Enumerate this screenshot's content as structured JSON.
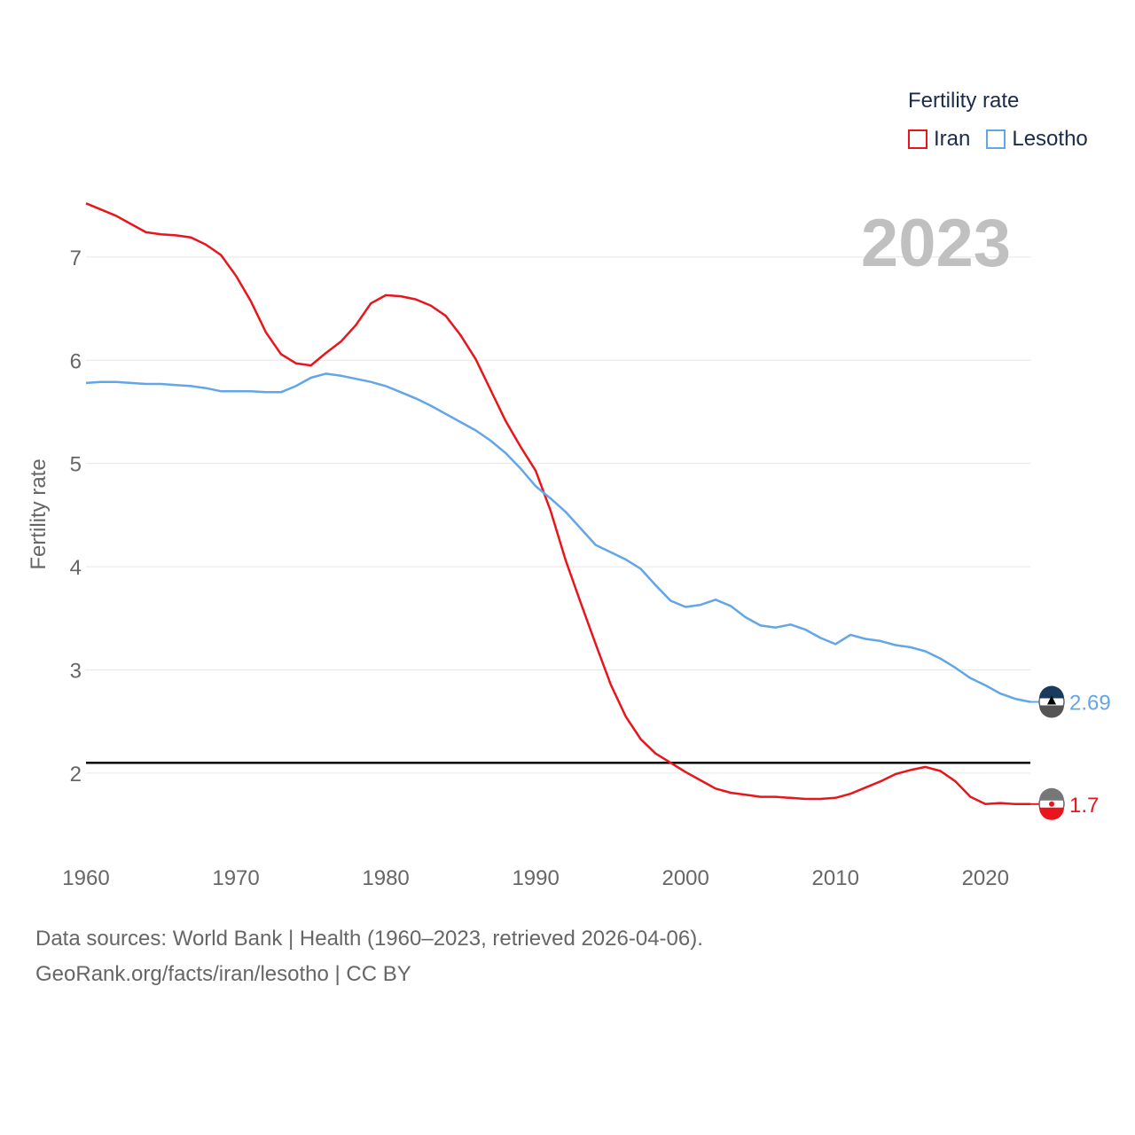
{
  "legend": {
    "title": "Fertility rate",
    "items": [
      {
        "label": "Iran",
        "color": "#e8161c"
      },
      {
        "label": "Lesotho",
        "color": "#62a6e8"
      }
    ]
  },
  "footer": {
    "line1": "Data sources: World Bank | Health (1960–2023, retrieved 2026-04-06).",
    "line2": "GeoRank.org/facts/iran/lesotho | CC BY"
  },
  "chart_data": {
    "type": "line",
    "title": "Fertility rate",
    "xlabel": "",
    "ylabel": "Fertility rate",
    "year_label": "2023",
    "xlim": [
      1960,
      2023
    ],
    "ylim": [
      1.2,
      7.6
    ],
    "x_ticks": [
      1960,
      1970,
      1980,
      1990,
      2000,
      2010,
      2020
    ],
    "y_ticks": [
      2,
      3,
      4,
      5,
      6,
      7
    ],
    "reference_line": {
      "value": 2.1,
      "color": "#000000"
    },
    "x": [
      1960,
      1961,
      1962,
      1963,
      1964,
      1965,
      1966,
      1967,
      1968,
      1969,
      1970,
      1971,
      1972,
      1973,
      1974,
      1975,
      1976,
      1977,
      1978,
      1979,
      1980,
      1981,
      1982,
      1983,
      1984,
      1985,
      1986,
      1987,
      1988,
      1989,
      1990,
      1991,
      1992,
      1993,
      1994,
      1995,
      1996,
      1997,
      1998,
      1999,
      2000,
      2001,
      2002,
      2003,
      2004,
      2005,
      2006,
      2007,
      2008,
      2009,
      2010,
      2011,
      2012,
      2013,
      2014,
      2015,
      2016,
      2017,
      2018,
      2019,
      2020,
      2021,
      2022,
      2023
    ],
    "series": [
      {
        "name": "Iran",
        "color": "#e8161c",
        "end_label": "1.7",
        "values": [
          7.52,
          7.46,
          7.4,
          7.32,
          7.24,
          7.22,
          7.21,
          7.19,
          7.12,
          7.02,
          6.82,
          6.57,
          6.27,
          6.06,
          5.97,
          5.95,
          6.07,
          6.18,
          6.34,
          6.55,
          6.63,
          6.62,
          6.59,
          6.53,
          6.43,
          6.24,
          6.01,
          5.71,
          5.41,
          5.16,
          4.93,
          4.54,
          4.06,
          3.65,
          3.25,
          2.86,
          2.55,
          2.33,
          2.19,
          2.1,
          2.01,
          1.93,
          1.85,
          1.81,
          1.79,
          1.77,
          1.77,
          1.76,
          1.75,
          1.75,
          1.76,
          1.8,
          1.86,
          1.92,
          1.99,
          2.03,
          2.06,
          2.02,
          1.92,
          1.77,
          1.7,
          1.71,
          1.7,
          1.7
        ]
      },
      {
        "name": "Lesotho",
        "color": "#62a6e8",
        "end_label": "2.69",
        "values": [
          5.78,
          5.79,
          5.79,
          5.78,
          5.77,
          5.77,
          5.76,
          5.75,
          5.73,
          5.7,
          5.7,
          5.7,
          5.69,
          5.69,
          5.75,
          5.83,
          5.87,
          5.85,
          5.82,
          5.79,
          5.75,
          5.69,
          5.63,
          5.56,
          5.48,
          5.4,
          5.32,
          5.22,
          5.1,
          4.95,
          4.78,
          4.66,
          4.53,
          4.37,
          4.21,
          4.14,
          4.07,
          3.98,
          3.82,
          3.67,
          3.61,
          3.63,
          3.68,
          3.62,
          3.51,
          3.43,
          3.41,
          3.44,
          3.39,
          3.31,
          3.25,
          3.34,
          3.3,
          3.28,
          3.24,
          3.22,
          3.18,
          3.11,
          3.02,
          2.92,
          2.85,
          2.77,
          2.72,
          2.69
        ]
      }
    ]
  }
}
